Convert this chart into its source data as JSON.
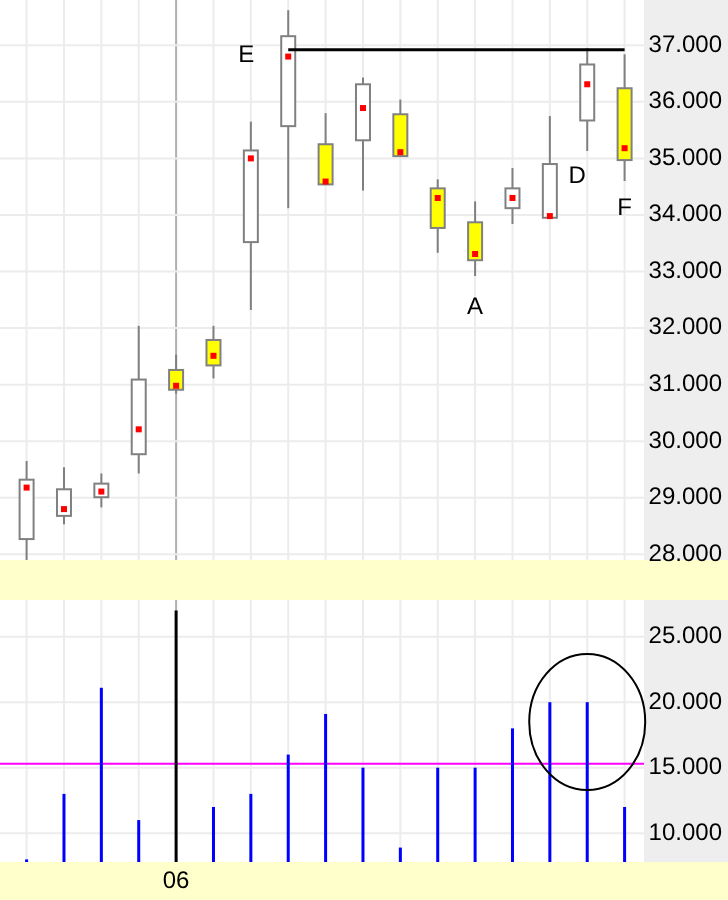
{
  "chart_data": [
    {
      "type": "candlestick",
      "categories": [
        null,
        null,
        null,
        null,
        null,
        null,
        null,
        null,
        null,
        null,
        null,
        null,
        null,
        null,
        null,
        null,
        null
      ],
      "ohlc": [
        [
          28.27,
          29.65,
          27.9,
          29.32
        ],
        [
          28.68,
          29.54,
          28.53,
          29.15
        ],
        [
          29.01,
          29.43,
          28.83,
          29.25
        ],
        [
          29.77,
          32.04,
          29.43,
          31.09
        ],
        [
          31.26,
          31.53,
          30.84,
          30.91
        ],
        [
          31.79,
          32.04,
          31.11,
          31.34
        ],
        [
          33.52,
          35.65,
          32.32,
          35.14
        ],
        [
          35.57,
          37.62,
          34.12,
          37.16
        ],
        [
          35.25,
          35.8,
          34.54,
          34.54
        ],
        [
          35.32,
          36.43,
          34.43,
          36.31
        ],
        [
          35.78,
          36.04,
          35.04,
          35.04
        ],
        [
          34.47,
          34.63,
          33.33,
          33.77
        ],
        [
          33.87,
          34.24,
          32.92,
          33.2
        ],
        [
          34.12,
          34.83,
          33.84,
          34.47
        ],
        [
          33.95,
          35.75,
          33.95,
          34.9
        ],
        [
          35.67,
          36.95,
          35.13,
          36.66
        ],
        [
          36.24,
          36.84,
          34.6,
          34.97
        ]
      ],
      "colors": [
        "#ffffff",
        "#ffffff",
        "#ffffff",
        "#ffffff",
        "#ffff00",
        "#ffff00",
        "#ffffff",
        "#ffffff",
        "#ffff00",
        "#ffffff",
        "#ffff00",
        "#ffff00",
        "#ffff00",
        "#ffffff",
        "#ffffff",
        "#ffffff",
        "#ffff00"
      ],
      "series": [
        {
          "type": "scatter",
          "marker": "square",
          "color": "#ff0000",
          "values": [
            29.18,
            28.8,
            29.11,
            30.21,
            30.98,
            31.51,
            35.0,
            36.8,
            34.59,
            35.89,
            35.11,
            34.3,
            33.31,
            34.3,
            33.98,
            36.31,
            35.18
          ]
        },
        {
          "type": "line",
          "color": "#000000",
          "values": [
            null,
            null,
            null,
            null,
            null,
            null,
            null,
            36.92,
            36.92,
            36.92,
            36.92,
            36.92,
            36.92,
            36.92,
            36.92,
            36.92,
            36.92
          ]
        }
      ],
      "ylim": [
        27.9,
        37.8
      ],
      "yticks": [
        {
          "value": 28,
          "label": "28.000"
        },
        {
          "value": 29,
          "label": "29.000"
        },
        {
          "value": 30,
          "label": "30.000"
        },
        {
          "value": 31,
          "label": "31.000"
        },
        {
          "value": 32,
          "label": "32.000"
        },
        {
          "value": 33,
          "label": "33.000"
        },
        {
          "value": 34,
          "label": "34.000"
        },
        {
          "value": 35,
          "label": "35.000"
        },
        {
          "value": 36,
          "label": "36.000"
        },
        {
          "value": 37,
          "label": "37.000"
        }
      ],
      "grid": true,
      "tick_labels": "y",
      "annotations": [
        "E",
        "A",
        "D",
        "F"
      ]
    },
    {
      "type": "bar",
      "categories": [
        null,
        null,
        null,
        null,
        "06",
        null,
        null,
        null,
        null,
        null,
        null,
        null,
        null,
        null,
        null,
        null,
        null
      ],
      "values": [
        8.0,
        13.0,
        21.1,
        11.0,
        27.0,
        12.0,
        13.0,
        16.0,
        19.1,
        15.0,
        8.9,
        15.0,
        15.0,
        18.0,
        20.0,
        20.0,
        12.0
      ],
      "colors": [
        "#0000ff",
        "#0000ff",
        "#0000ff",
        "#0000ff",
        "#000000",
        "#0000ff",
        "#0000ff",
        "#0000ff",
        "#0000ff",
        "#0000ff",
        "#0000ff",
        "#0000ff",
        "#0000ff",
        "#0000ff",
        "#0000ff",
        "#0000ff",
        "#0000ff"
      ],
      "ylim": [
        7.8,
        27.8
      ],
      "yticks": [
        {
          "value": 10,
          "label": "10.000"
        },
        {
          "value": 15,
          "label": "15.000"
        },
        {
          "value": 20,
          "label": "20.000"
        },
        {
          "value": 25,
          "label": "25.000"
        }
      ],
      "grid": true,
      "ref_lines": [
        {
          "axis": "y",
          "value": 15.3,
          "color": "#ff00ff"
        }
      ]
    }
  ]
}
